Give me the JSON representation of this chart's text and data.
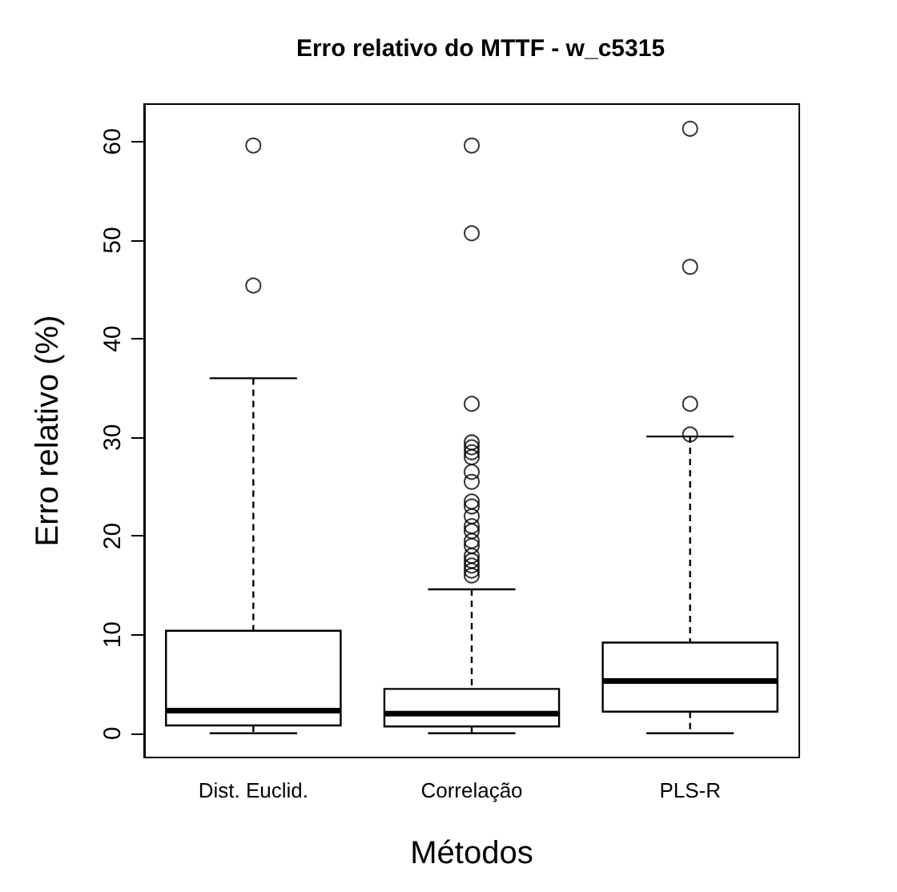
{
  "chart_data": {
    "type": "box",
    "title": "Erro relativo do MTTF - w_c5315",
    "xlabel": "Métodos",
    "ylabel": "Erro relativo (%)",
    "categories": [
      "Dist. Euclid.",
      "Correlação",
      "PLS-R"
    ],
    "boxes": [
      {
        "low": 0,
        "q1": 0.8,
        "median": 2.3,
        "q3": 10.4,
        "high": 36,
        "outliers": [
          45.4,
          59.6
        ]
      },
      {
        "low": 0,
        "q1": 0.7,
        "median": 2,
        "q3": 4.5,
        "high": 14.6,
        "outliers": [
          16,
          16.5,
          17,
          17.5,
          18,
          19,
          19.5,
          20.5,
          21,
          22,
          23,
          23.5,
          25.5,
          26.5,
          28,
          28.5,
          29,
          29.5,
          33.4,
          50.7,
          59.6
        ]
      },
      {
        "low": 0,
        "q1": 2.2,
        "median": 5.3,
        "q3": 9.2,
        "high": 30.1,
        "outliers": [
          30.3,
          33.4,
          47.3,
          61.3
        ]
      }
    ],
    "color": "#000000",
    "ylim": [
      -2.45,
      63.8
    ],
    "yticks": [
      0,
      10,
      20,
      30,
      40,
      50,
      60
    ],
    "grid": false
  }
}
